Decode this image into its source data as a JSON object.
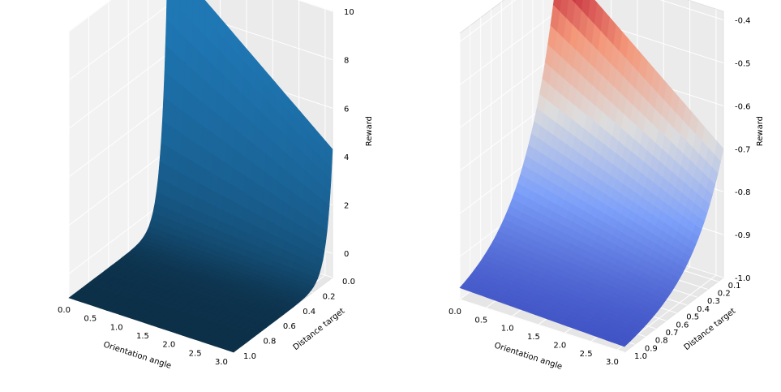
{
  "chart_data": [
    {
      "type": "surface",
      "colormap": "solid-blue",
      "color": "#1f77b4",
      "title": "",
      "xlabel": "Orientation angle",
      "ylabel": "Distance target",
      "zlabel": "Reward",
      "xlim": [
        0,
        3.14
      ],
      "ylim": [
        0,
        1.0
      ],
      "zlim": [
        -1,
        10
      ],
      "xticks": [
        "0.0",
        "0.5",
        "1.0",
        "1.5",
        "2.0",
        "2.5",
        "3.0"
      ],
      "yticks": [
        "0.0",
        "0.2",
        "0.4",
        "0.6",
        "0.8",
        "1.0"
      ],
      "zticks": [
        "0",
        "2",
        "4",
        "6",
        "8",
        "10"
      ],
      "surface": {
        "description_values": "Reward is near -1 for most distances and rises sharply toward distance 0, reaching about 10 at angle 0 and about 4 at angle 3.14",
        "peak_at_angle_0": 10,
        "peak_at_angle_pi": 4.3,
        "floor": -1
      },
      "grid": true
    },
    {
      "type": "surface",
      "colormap": "coolwarm",
      "title": "",
      "xlabel": "Orientation angle",
      "ylabel": "Distance target",
      "zlabel": "Reward",
      "xlim": [
        0,
        3.14
      ],
      "ylim": [
        0.05,
        1.0
      ],
      "zlim": [
        -1.0,
        -0.38
      ],
      "xticks": [
        "0.0",
        "0.5",
        "1.0",
        "1.5",
        "2.0",
        "2.5",
        "3.0"
      ],
      "yticks": [
        "0.1",
        "0.2",
        "0.3",
        "0.4",
        "0.5",
        "0.6",
        "0.7",
        "0.8",
        "0.9",
        "1.0"
      ],
      "zticks": [
        "-0.4",
        "-0.5",
        "-0.6",
        "-0.7",
        "-0.8",
        "-0.9",
        "-1.0"
      ],
      "surface": {
        "peak_at_angle_0": -0.38,
        "peak_at_angle_pi": -0.7,
        "floor": -1.0
      },
      "grid": true
    }
  ]
}
